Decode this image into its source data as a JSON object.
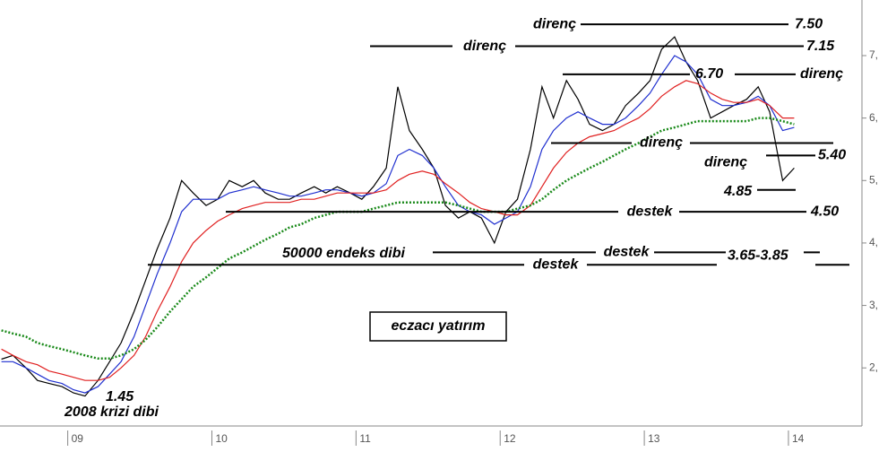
{
  "chart_data": {
    "type": "line",
    "title": "eczacı yatırım",
    "x": [
      2008.54,
      2008.62,
      2008.71,
      2008.79,
      2008.87,
      2008.96,
      2009.04,
      2009.12,
      2009.21,
      2009.29,
      2009.37,
      2009.46,
      2009.54,
      2009.62,
      2009.71,
      2009.79,
      2009.87,
      2009.96,
      2010.04,
      2010.12,
      2010.21,
      2010.29,
      2010.37,
      2010.46,
      2010.54,
      2010.62,
      2010.71,
      2010.79,
      2010.87,
      2010.96,
      2011.04,
      2011.12,
      2011.21,
      2011.29,
      2011.37,
      2011.46,
      2011.54,
      2011.62,
      2011.71,
      2011.79,
      2011.87,
      2011.96,
      2012.04,
      2012.12,
      2012.21,
      2012.29,
      2012.37,
      2012.46,
      2012.54,
      2012.62,
      2012.71,
      2012.79,
      2012.87,
      2012.96,
      2013.04,
      2013.12,
      2013.21,
      2013.29,
      2013.37,
      2013.46,
      2013.54,
      2013.62,
      2013.71,
      2013.79,
      2013.87,
      2013.96,
      2014.04
    ],
    "series": [
      {
        "color": "#000000",
        "line_style": "solid",
        "values": [
          2.14,
          2.2,
          2.0,
          1.8,
          1.75,
          1.7,
          1.6,
          1.55,
          1.8,
          2.1,
          2.4,
          2.9,
          3.4,
          3.9,
          4.4,
          5.0,
          4.8,
          4.6,
          4.7,
          5.0,
          4.9,
          5.0,
          4.8,
          4.7,
          4.7,
          4.8,
          4.9,
          4.8,
          4.9,
          4.8,
          4.7,
          4.9,
          5.2,
          6.5,
          5.8,
          5.5,
          5.2,
          4.6,
          4.4,
          4.5,
          4.4,
          4.0,
          4.5,
          4.7,
          5.5,
          6.5,
          6.0,
          6.6,
          6.3,
          5.9,
          5.8,
          5.9,
          6.2,
          6.4,
          6.6,
          7.1,
          7.3,
          6.9,
          6.6,
          6.0,
          6.1,
          6.2,
          6.3,
          6.5,
          6.1,
          5.0,
          5.2
        ]
      },
      {
        "color": "#1f2fcf",
        "line_style": "solid",
        "values": [
          2.1,
          2.1,
          2.0,
          1.9,
          1.8,
          1.75,
          1.65,
          1.6,
          1.7,
          1.9,
          2.1,
          2.5,
          3.0,
          3.5,
          4.0,
          4.5,
          4.7,
          4.7,
          4.7,
          4.8,
          4.85,
          4.9,
          4.85,
          4.8,
          4.75,
          4.75,
          4.8,
          4.85,
          4.85,
          4.8,
          4.75,
          4.8,
          4.95,
          5.4,
          5.5,
          5.4,
          5.2,
          4.9,
          4.6,
          4.5,
          4.45,
          4.3,
          4.4,
          4.5,
          4.9,
          5.5,
          5.8,
          6.0,
          6.1,
          6.0,
          5.9,
          5.9,
          6.0,
          6.2,
          6.4,
          6.7,
          7.0,
          6.9,
          6.7,
          6.3,
          6.2,
          6.2,
          6.25,
          6.35,
          6.2,
          5.8,
          5.85
        ]
      },
      {
        "color": "#e02020",
        "line_style": "solid",
        "values": [
          2.3,
          2.2,
          2.1,
          2.05,
          1.95,
          1.9,
          1.85,
          1.8,
          1.8,
          1.85,
          2.0,
          2.2,
          2.5,
          2.9,
          3.3,
          3.7,
          4.0,
          4.2,
          4.35,
          4.45,
          4.55,
          4.6,
          4.65,
          4.65,
          4.65,
          4.7,
          4.7,
          4.75,
          4.8,
          4.8,
          4.8,
          4.8,
          4.85,
          5.0,
          5.1,
          5.15,
          5.1,
          4.95,
          4.8,
          4.65,
          4.55,
          4.5,
          4.45,
          4.45,
          4.6,
          4.9,
          5.2,
          5.45,
          5.6,
          5.7,
          5.75,
          5.8,
          5.9,
          6.0,
          6.15,
          6.35,
          6.5,
          6.6,
          6.55,
          6.4,
          6.3,
          6.25,
          6.25,
          6.3,
          6.2,
          6.0,
          6.0
        ]
      },
      {
        "color": "#1a8a1a",
        "line_style": "dotted",
        "values": [
          2.6,
          2.55,
          2.5,
          2.4,
          2.35,
          2.3,
          2.25,
          2.2,
          2.15,
          2.15,
          2.2,
          2.3,
          2.45,
          2.65,
          2.9,
          3.1,
          3.3,
          3.45,
          3.6,
          3.75,
          3.85,
          3.95,
          4.05,
          4.15,
          4.25,
          4.3,
          4.4,
          4.45,
          4.5,
          4.5,
          4.5,
          4.55,
          4.6,
          4.65,
          4.65,
          4.65,
          4.65,
          4.65,
          4.6,
          4.55,
          4.5,
          4.5,
          4.5,
          4.55,
          4.6,
          4.7,
          4.85,
          5.0,
          5.1,
          5.2,
          5.3,
          5.4,
          5.5,
          5.6,
          5.7,
          5.8,
          5.85,
          5.9,
          5.95,
          5.95,
          5.95,
          5.95,
          5.95,
          6.0,
          6.0,
          5.95,
          5.9
        ]
      }
    ],
    "xlim": [
      2008.53,
      2014.51
    ],
    "xticks": [
      {
        "value": 2009,
        "label": "09"
      },
      {
        "value": 2010,
        "label": "10"
      },
      {
        "value": 2011,
        "label": "11"
      },
      {
        "value": 2012,
        "label": "12"
      },
      {
        "value": 2013,
        "label": "13"
      },
      {
        "value": 2014,
        "label": "14"
      }
    ],
    "ylim": [
      1.07,
      7.89
    ],
    "yticks": [
      {
        "value": 2,
        "label": "2,"
      },
      {
        "value": 3,
        "label": "3,"
      },
      {
        "value": 4,
        "label": "4,"
      },
      {
        "value": 5,
        "label": "5,"
      },
      {
        "value": 6,
        "label": "6,"
      },
      {
        "value": 7,
        "label": "7,"
      }
    ],
    "levels": [
      {
        "value": 7.5,
        "label": "direnç",
        "value_label": "7.50"
      },
      {
        "value": 7.15,
        "label": "direnç",
        "value_label": "7.15"
      },
      {
        "value": 6.7,
        "label": "direnç",
        "value_label": "6.70"
      },
      {
        "value": 5.6,
        "label": "direnç"
      },
      {
        "value": 5.4,
        "label": "direnç",
        "value_label": "5.40"
      },
      {
        "value": 4.85,
        "value_label": "4.85"
      },
      {
        "value": 4.5,
        "label": "destek",
        "value_label": "4.50"
      },
      {
        "value": 3.85,
        "label": "destek"
      },
      {
        "value": 3.65,
        "label": "destek",
        "value_label": "3.65-3.85"
      }
    ],
    "annotations": [
      "1.45",
      "2008 krizi dibi",
      "50000 endeks dibi"
    ]
  }
}
